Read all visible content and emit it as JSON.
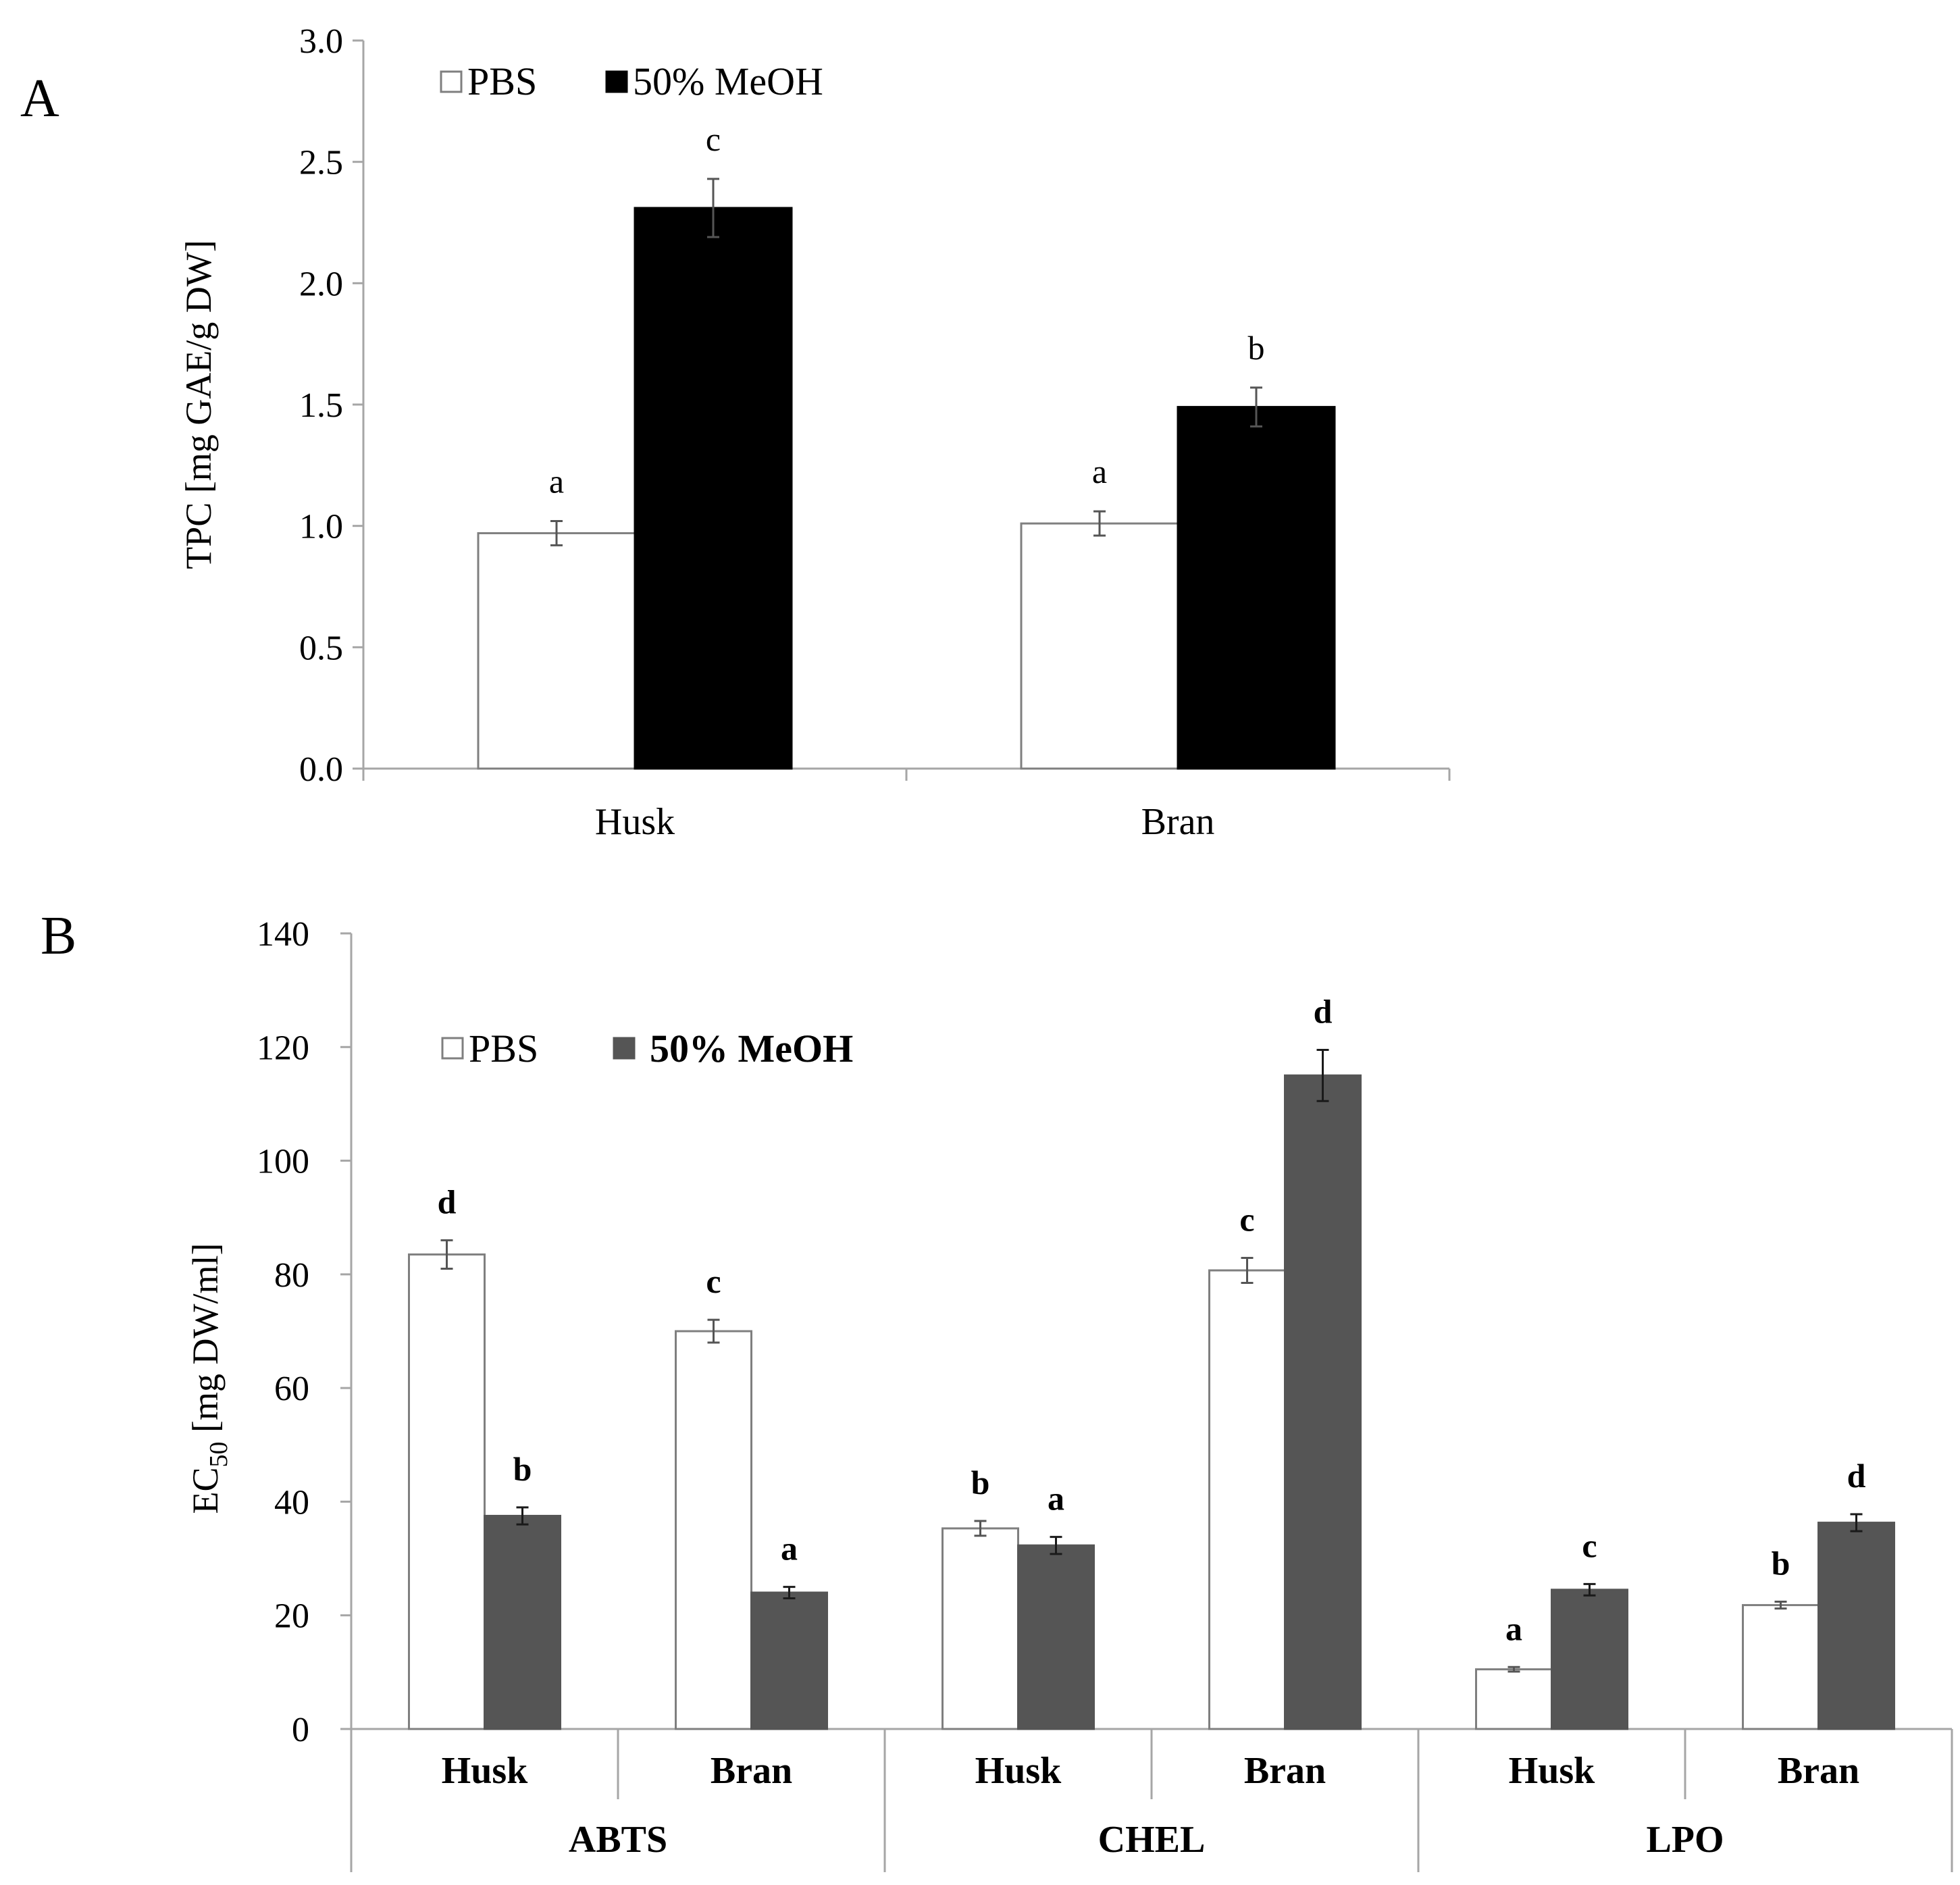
{
  "colors": {
    "pbs": "#ffffff",
    "meoh_a": "#000000",
    "meoh_b": "#555555",
    "axis": "#a6a6a6",
    "bar_stroke": "#7f7f7f",
    "error": "#555555"
  },
  "chart_data": [
    {
      "panel": "A",
      "type": "bar",
      "title": "",
      "xlabel": "",
      "ylabel": "TPC [mg GAE/g DW]",
      "ylim": [
        0,
        3.0
      ],
      "yticks": [
        "0.0",
        "0.5",
        "1.0",
        "1.5",
        "2.0",
        "2.5",
        "3.0"
      ],
      "categories": [
        "Husk",
        "Bran"
      ],
      "legend_position": "top-left",
      "series": [
        {
          "name": "PBS",
          "values": [
            0.97,
            1.01
          ],
          "errors": [
            0.05,
            0.05
          ],
          "labels": [
            "a",
            "a"
          ]
        },
        {
          "name": "50% MeOH",
          "values": [
            2.31,
            1.49
          ],
          "errors": [
            0.12,
            0.08
          ],
          "labels": [
            "c",
            "b"
          ]
        }
      ]
    },
    {
      "panel": "B",
      "type": "bar",
      "title": "",
      "xlabel": "",
      "ylabel": "EC50 [mg DW/ml]",
      "ylabel_main": "EC",
      "ylabel_sub": "50",
      "ylabel_rest": " [mg DW/ml]",
      "ylim": [
        0,
        140
      ],
      "yticks": [
        "0",
        "20",
        "40",
        "60",
        "80",
        "100",
        "120",
        "140"
      ],
      "groups": [
        "ABTS",
        "CHEL",
        "LPO"
      ],
      "categories": [
        "Husk",
        "Bran",
        "Husk",
        "Bran",
        "Husk",
        "Bran"
      ],
      "legend_position": "top-left",
      "series": [
        {
          "name": "PBS",
          "values": [
            83.5,
            70.0,
            35.3,
            80.7,
            10.5,
            21.8
          ],
          "errors": [
            2.5,
            2.0,
            1.3,
            2.2,
            0.4,
            0.6
          ],
          "labels": [
            "d",
            "c",
            "b",
            "c",
            "a",
            "b"
          ]
        },
        {
          "name": "50% MeOH",
          "values": [
            37.5,
            24.0,
            32.3,
            115.0,
            24.5,
            36.3
          ],
          "errors": [
            1.5,
            1.0,
            1.5,
            4.5,
            1.0,
            1.5
          ],
          "labels": [
            "b",
            "a",
            "a",
            "d",
            "c",
            "d"
          ]
        }
      ]
    }
  ]
}
